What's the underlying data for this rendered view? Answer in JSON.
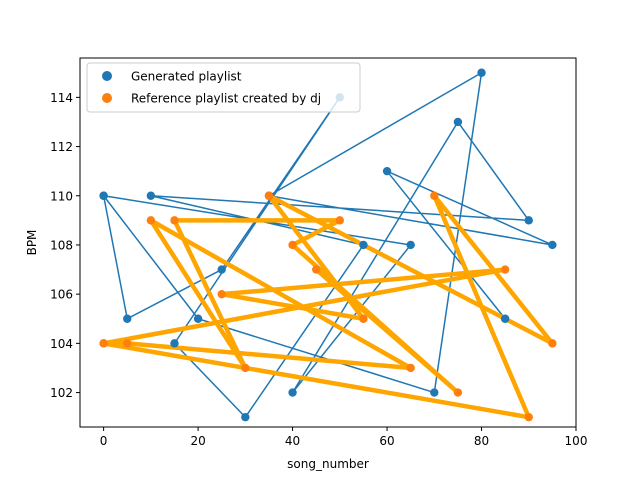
{
  "chart_data": {
    "type": "line",
    "xlabel": "song_number",
    "ylabel": "BPM",
    "xlim": [
      -5,
      100
    ],
    "ylim": [
      100.6,
      115.6
    ],
    "xticks": [
      0,
      20,
      40,
      60,
      80,
      100
    ],
    "yticks": [
      102,
      104,
      106,
      108,
      110,
      112,
      114
    ],
    "grid": false,
    "legend_position": "upper-left",
    "series": [
      {
        "name": "Generated playlist",
        "color": "#1f77b4",
        "line_width": "thin",
        "x": [
          0,
          5,
          25,
          50,
          15,
          30,
          55,
          10,
          90,
          75,
          40,
          65,
          0,
          20,
          70,
          80,
          35,
          95,
          60,
          85
        ],
        "y": [
          110,
          105,
          107,
          114,
          104,
          101,
          108,
          110,
          109,
          113,
          102,
          108,
          110,
          105,
          102,
          115,
          110,
          108,
          111,
          105
        ]
      },
      {
        "name": "Reference playlist created by dj",
        "color": "#ffa500",
        "marker_color": "#ff7f0e",
        "line_width": "thick",
        "x": [
          0,
          85,
          25,
          55,
          35,
          95,
          70,
          90,
          0,
          5,
          65,
          10,
          30,
          15,
          50,
          40,
          75,
          45
        ],
        "y": [
          104,
          107,
          106,
          105,
          110,
          104,
          110,
          101,
          104,
          104,
          103,
          109,
          103,
          109,
          109,
          108,
          102,
          107
        ]
      }
    ],
    "legend": [
      {
        "label": "Generated playlist",
        "color": "#1f77b4"
      },
      {
        "label": "Reference playlist created by dj",
        "color": "#ff7f0e"
      }
    ]
  }
}
